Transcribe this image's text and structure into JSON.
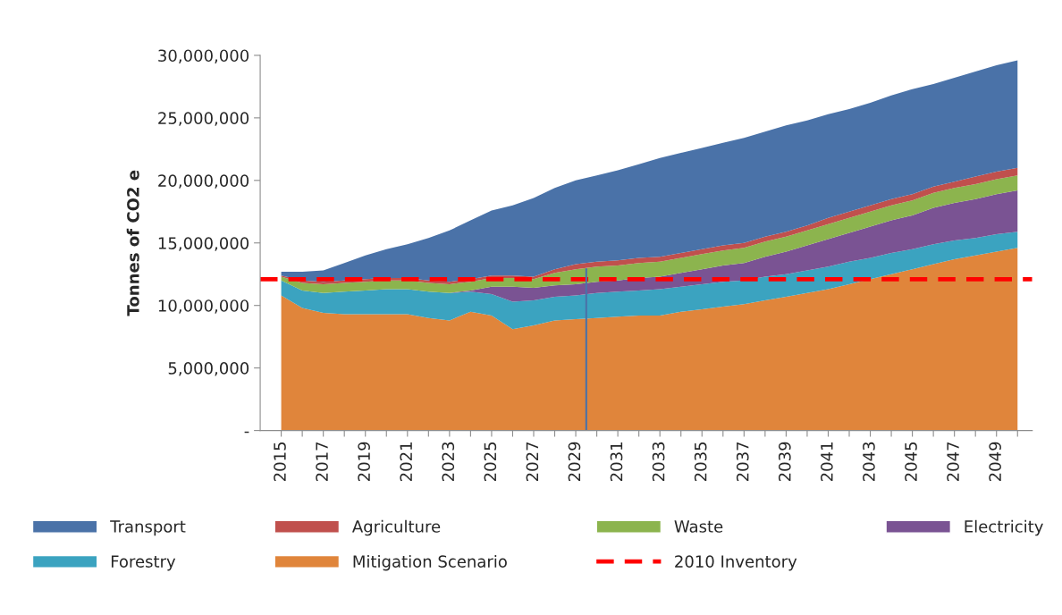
{
  "chart_data": {
    "type": "area",
    "stacked": true,
    "ylabel": "Tonnes of CO2 e",
    "categories": [
      "2015",
      null,
      "2017",
      null,
      "2019",
      null,
      "2021",
      null,
      "2023",
      null,
      "2025",
      null,
      "2027",
      null,
      "2029",
      null,
      "2031",
      null,
      "2033",
      null,
      "2035",
      null,
      "2037",
      null,
      "2039",
      null,
      "2041",
      null,
      "2043",
      null,
      "2045",
      null,
      "2047",
      null,
      "2049",
      null
    ],
    "series": [
      {
        "name": "Mitigation Scenario",
        "color": "#e0853b",
        "values": [
          10800000,
          9800000,
          9400000,
          9300000,
          9300000,
          9300000,
          9300000,
          9000000,
          8800000,
          9500000,
          9200000,
          8100000,
          8400000,
          8800000,
          8900000,
          9000000,
          9100000,
          9200000,
          9200000,
          9500000,
          9700000,
          9900000,
          10100000,
          10400000,
          10700000,
          11000000,
          11300000,
          11700000,
          12100000,
          12500000,
          12900000,
          13300000,
          13700000,
          14000000,
          14300000,
          14600000
        ]
      },
      {
        "name": "Forestry",
        "color": "#3ba3c0",
        "values": [
          1200000,
          1400000,
          1600000,
          1800000,
          1900000,
          2000000,
          2000000,
          2100000,
          2200000,
          1600000,
          1700000,
          2200000,
          2000000,
          1900000,
          1900000,
          2000000,
          2000000,
          2000000,
          2100000,
          2000000,
          2000000,
          2000000,
          1900000,
          1900000,
          1800000,
          1800000,
          1800000,
          1800000,
          1700000,
          1700000,
          1600000,
          1600000,
          1500000,
          1400000,
          1400000,
          1300000
        ]
      },
      {
        "name": "Electricity",
        "color": "#7a5393",
        "values": [
          0,
          0,
          0,
          0,
          0,
          0,
          0,
          0,
          0,
          100000,
          600000,
          1200000,
          1000000,
          900000,
          900000,
          900000,
          900000,
          1000000,
          1000000,
          1100000,
          1200000,
          1300000,
          1400000,
          1600000,
          1800000,
          2000000,
          2200000,
          2300000,
          2500000,
          2600000,
          2700000,
          2900000,
          3000000,
          3100000,
          3200000,
          3300000
        ]
      },
      {
        "name": "Waste",
        "color": "#8cb44e",
        "values": [
          300000,
          600000,
          700000,
          700000,
          700000,
          700000,
          700000,
          700000,
          700000,
          700000,
          700000,
          700000,
          700000,
          1000000,
          1200000,
          1200000,
          1200000,
          1200000,
          1200000,
          1200000,
          1200000,
          1200000,
          1200000,
          1200000,
          1200000,
          1200000,
          1200000,
          1200000,
          1200000,
          1200000,
          1200000,
          1200000,
          1200000,
          1200000,
          1200000,
          1200000
        ]
      },
      {
        "name": "Agriculture",
        "color": "#c0504d",
        "values": [
          100000,
          200000,
          200000,
          200000,
          200000,
          200000,
          200000,
          200000,
          200000,
          200000,
          200000,
          200000,
          200000,
          300000,
          400000,
          400000,
          400000,
          400000,
          400000,
          400000,
          400000,
          400000,
          400000,
          400000,
          400000,
          400000,
          500000,
          500000,
          500000,
          500000,
          500000,
          500000,
          500000,
          600000,
          600000,
          600000
        ]
      },
      {
        "name": "Transport",
        "color": "#4a72a8",
        "values": [
          300000,
          700000,
          900000,
          1400000,
          1900000,
          2300000,
          2700000,
          3400000,
          4100000,
          4700000,
          5200000,
          5600000,
          6300000,
          6500000,
          6700000,
          6900000,
          7200000,
          7500000,
          7900000,
          8000000,
          8100000,
          8200000,
          8400000,
          8400000,
          8500000,
          8400000,
          8300000,
          8200000,
          8200000,
          8300000,
          8400000,
          8200000,
          8300000,
          8400000,
          8500000,
          8600000
        ]
      }
    ],
    "ref_lines": [
      {
        "axis": "y",
        "value": 12100000,
        "label": "2010 Inventory",
        "color": "#ff0000",
        "line_style": "dashed"
      },
      {
        "axis": "x",
        "value": "2029",
        "color": "#4a72a8",
        "line_style": "solid"
      }
    ],
    "ylim": [
      0,
      30000000
    ],
    "yticks": [
      {
        "value": 0,
        "label": "-"
      },
      {
        "value": 5000000,
        "label": "5,000,000"
      },
      {
        "value": 10000000,
        "label": "10,000,000"
      },
      {
        "value": 15000000,
        "label": "15,000,000"
      },
      {
        "value": 20000000,
        "label": "20,000,000"
      },
      {
        "value": 25000000,
        "label": "25,000,000"
      },
      {
        "value": 30000000,
        "label": "30,000,000"
      }
    ],
    "grid": false,
    "legend": "bottom"
  }
}
